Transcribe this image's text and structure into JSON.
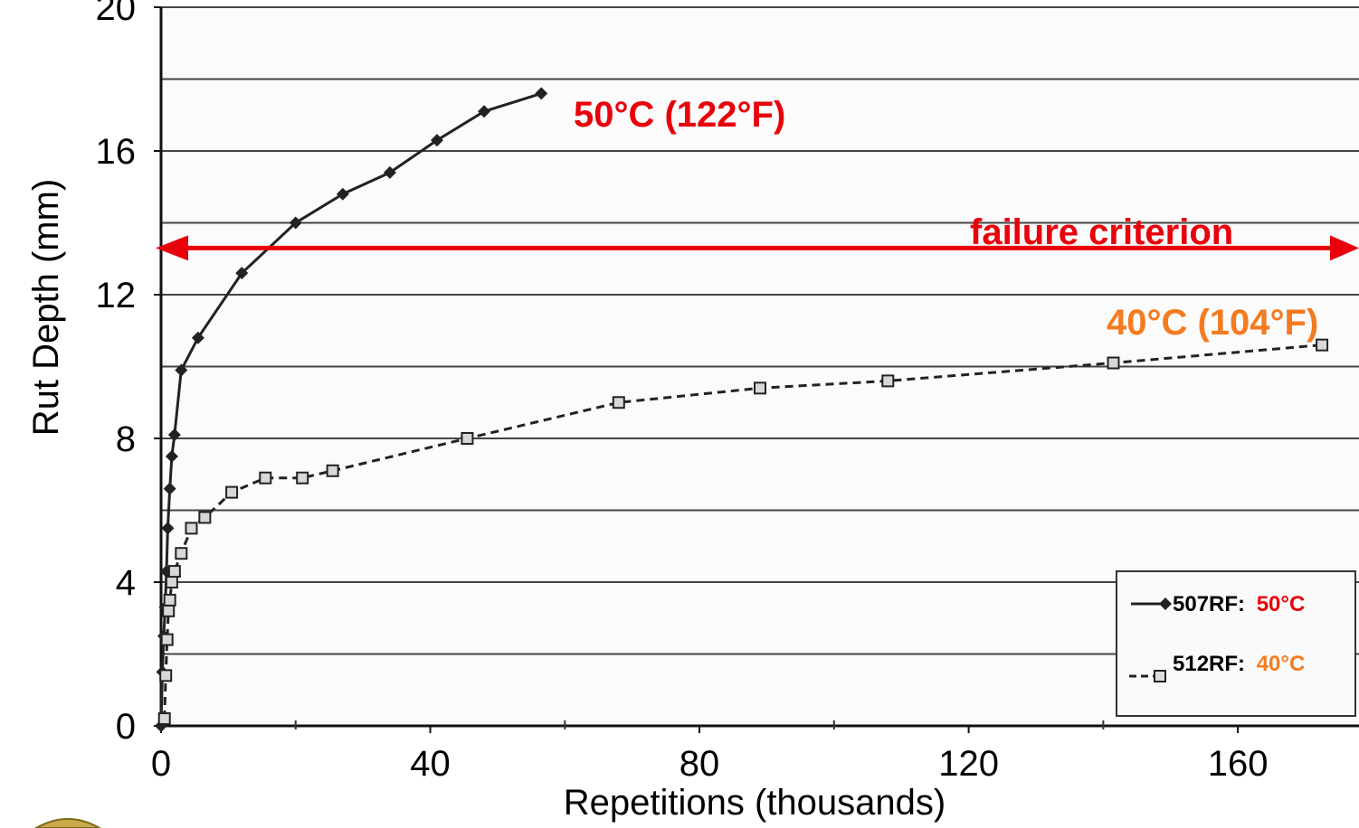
{
  "chart_data": {
    "type": "line",
    "title": "",
    "xlabel": "Repetitions (thousands)",
    "ylabel": "Rut Depth (mm)",
    "xlim": [
      0,
      178
    ],
    "ylim": [
      0,
      20
    ],
    "xticks": [
      0,
      40,
      80,
      120,
      160
    ],
    "yticks": [
      0,
      4,
      8,
      12,
      16,
      20
    ],
    "grid": "horizontal",
    "legend_position": "bottom-right",
    "series": [
      {
        "name": "507RF: 50°C",
        "legend_id": "507RF:",
        "legend_temp": "50°C",
        "temp_color": "#e8000b",
        "line_color": "#222222",
        "marker": "diamond",
        "dash": "solid",
        "x": [
          0,
          0.2,
          0.4,
          0.6,
          0.8,
          1.0,
          1.3,
          1.6,
          2.0,
          3.0,
          5.5,
          12.0,
          20.0,
          27.0,
          34.0,
          41.0,
          48.0,
          56.5
        ],
        "y": [
          0,
          1.5,
          2.5,
          3.3,
          4.3,
          5.5,
          6.6,
          7.5,
          8.1,
          9.9,
          10.8,
          12.6,
          14.0,
          14.8,
          15.4,
          16.3,
          17.1,
          17.6
        ]
      },
      {
        "name": "512RF: 40°C",
        "legend_id": "512RF:",
        "legend_temp": "40°C",
        "temp_color": "#f47b20",
        "line_color": "#222222",
        "marker": "square",
        "dash": "dashed",
        "x": [
          0.5,
          0.7,
          0.9,
          1.1,
          1.3,
          1.6,
          2.0,
          3.0,
          4.5,
          6.5,
          10.5,
          15.5,
          21.0,
          25.5,
          45.5,
          68.0,
          89.0,
          108.0,
          141.5,
          172.5
        ],
        "y": [
          0.2,
          1.4,
          2.4,
          3.2,
          3.5,
          4.0,
          4.3,
          4.8,
          5.5,
          5.8,
          6.5,
          6.9,
          6.9,
          7.1,
          8.0,
          9.0,
          9.4,
          9.6,
          10.1,
          10.6
        ]
      }
    ],
    "annotations": [
      {
        "text": "50°C (122°F)",
        "color": "#e8000b"
      },
      {
        "text": "40°C (104°F)",
        "color": "#f47b20"
      },
      {
        "text": "failure criterion",
        "color": "#e8000b",
        "y": 13.3
      }
    ]
  }
}
